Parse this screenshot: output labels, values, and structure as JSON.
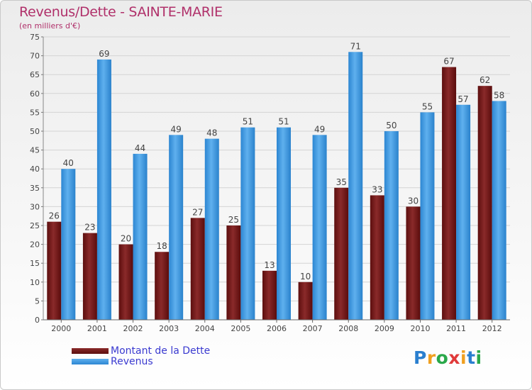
{
  "header": {
    "title": "Revenus/Dette - SAINTE-MARIE",
    "subtitle": "(en milliers d'€)"
  },
  "legend": {
    "items": [
      {
        "label": "Montant de la Dette",
        "color": "#7a1a1a"
      },
      {
        "label": "Revenus",
        "color": "#3d9ae2"
      }
    ]
  },
  "logo": {
    "text": "Proxiti"
  },
  "chart_data": {
    "type": "bar",
    "title": "Revenus/Dette - SAINTE-MARIE",
    "subtitle": "(en milliers d'€)",
    "xlabel": "",
    "ylabel": "",
    "categories": [
      "2000",
      "2001",
      "2002",
      "2003",
      "2004",
      "2005",
      "2006",
      "2007",
      "2008",
      "2009",
      "2010",
      "2011",
      "2012"
    ],
    "series": [
      {
        "name": "Montant de la Dette",
        "color": "#7a1a1a",
        "values": [
          26,
          23,
          20,
          18,
          27,
          25,
          13,
          10,
          35,
          33,
          30,
          67,
          62
        ]
      },
      {
        "name": "Revenus",
        "color": "#3d9ae2",
        "values": [
          40,
          69,
          44,
          49,
          48,
          51,
          51,
          49,
          71,
          50,
          55,
          57,
          58
        ]
      }
    ],
    "ylim": [
      0,
      75
    ],
    "yticks": [
      0,
      5,
      10,
      15,
      20,
      25,
      30,
      35,
      40,
      45,
      50,
      55,
      60,
      65,
      70,
      75
    ],
    "grid": true,
    "legend_position": "bottom-left"
  }
}
